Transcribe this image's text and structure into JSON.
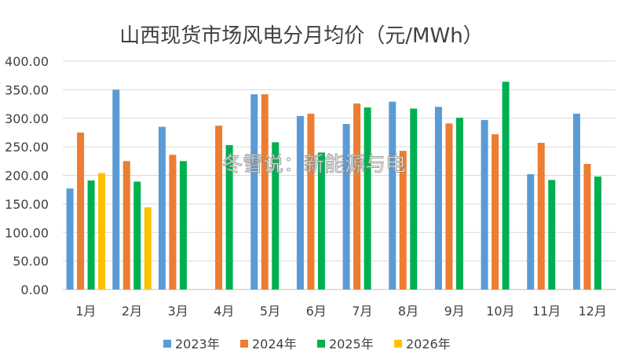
{
  "chart_data": {
    "type": "bar",
    "title": "山西现货市场风电分月均价（元/MWh）",
    "categories": [
      "1月",
      "2月",
      "3月",
      "4月",
      "5月",
      "6月",
      "7月",
      "8月",
      "9月",
      "10月",
      "11月",
      "12月"
    ],
    "ylim": [
      0,
      400
    ],
    "yticks": [
      "0.00",
      "50.00",
      "100.00",
      "150.00",
      "200.00",
      "250.00",
      "300.00",
      "350.00",
      "400.00"
    ],
    "grid": true,
    "legend_position": "bottom",
    "series": [
      {
        "name": "2023年",
        "color": "#5B9BD5",
        "values": [
          177,
          350,
          285,
          null,
          342,
          304,
          290,
          329,
          320,
          297,
          202,
          308
        ]
      },
      {
        "name": "2024年",
        "color": "#ED7D31",
        "values": [
          275,
          225,
          236,
          287,
          342,
          308,
          326,
          243,
          291,
          272,
          257,
          220
        ]
      },
      {
        "name": "2025年",
        "color": "#00B050",
        "values": [
          191,
          189,
          225,
          253,
          258,
          240,
          319,
          317,
          301,
          364,
          192,
          198
        ]
      },
      {
        "name": "2026年",
        "color": "#FFC000",
        "values": [
          204,
          144,
          null,
          null,
          null,
          null,
          null,
          null,
          null,
          null,
          null,
          null
        ]
      }
    ]
  },
  "watermark": "冬雪说：新能源与电"
}
